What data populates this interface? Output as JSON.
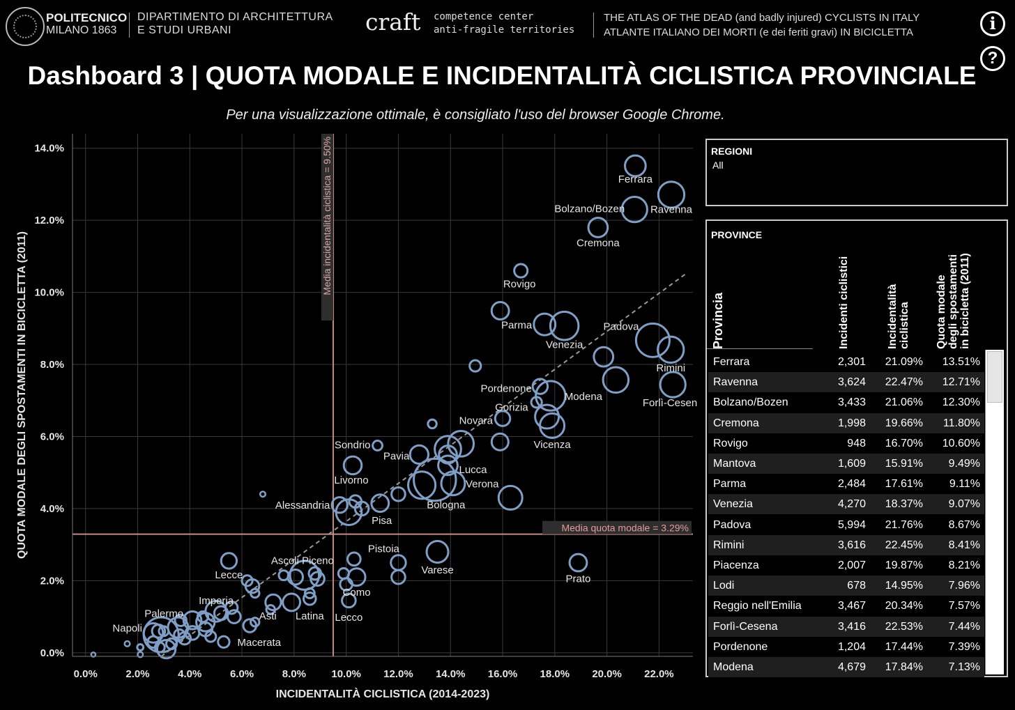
{
  "header": {
    "poli_line1": "POLITECNICO",
    "poli_line2": "MILANO 1863",
    "dept_line1": "DIPARTIMENTO DI ARCHITETTURA",
    "dept_line2": "E STUDI URBANI",
    "craft_logo": "craft",
    "craft_line1": "competence center",
    "craft_line2": "anti-fragile territories",
    "atlas_line1": "THE ATLAS OF THE DEAD (and badly injured) CYCLISTS IN ITALY",
    "atlas_line2": "ATLANTE ITALIANO DEI MORTI (e dei feriti gravi) IN BICICLETTA",
    "info_icon": "info-icon",
    "help_icon": "help-icon",
    "info_glyph": "i",
    "help_glyph": "?"
  },
  "title": "Dashboard 3 | QUOTA MODALE E INCIDENTALITÀ CICLISTICA PROVINCIALE",
  "subtitle": "Per una visualizzazione ottimale, è consigliato l'uso del browser Google Chrome.",
  "chart_data": {
    "type": "scatter",
    "xlabel": "INCIDENTALITÀ CICLISTICA (2014-2023)",
    "ylabel": "QUOTA MODALE DEGLI SPOSTAMENTI IN BICICLETTA (2011)",
    "xlim": [
      -0.5,
      23.3
    ],
    "ylim": [
      -0.1,
      14.4
    ],
    "x_ticks": [
      "0.0%",
      "2.0%",
      "4.0%",
      "6.0%",
      "8.0%",
      "10.0%",
      "12.0%",
      "14.0%",
      "16.0%",
      "18.0%",
      "20.0%",
      "22.0%"
    ],
    "x_tick_values": [
      0,
      2,
      4,
      6,
      8,
      10,
      12,
      14,
      16,
      18,
      20,
      22
    ],
    "y_ticks": [
      "0.0%",
      "2.0%",
      "4.0%",
      "6.0%",
      "8.0%",
      "10.0%",
      "12.0%",
      "14.0%"
    ],
    "y_tick_values": [
      0,
      2,
      4,
      6,
      8,
      10,
      12,
      14
    ],
    "grid": true,
    "ref_lines": [
      {
        "axis": "x",
        "value": 9.5,
        "label": "Media incidentalità ciclistica = 9.50%"
      },
      {
        "axis": "y",
        "value": 3.29,
        "label": "Media quota modale = 3.29%"
      }
    ],
    "trendline": {
      "x": [
        2.9,
        23.0
      ],
      "y": [
        -0.1,
        10.5
      ]
    },
    "size_encoding": "Incidenti ciclistici",
    "points": [
      {
        "x": 21.09,
        "y": 13.51,
        "n": 2301,
        "label": "Ferrara"
      },
      {
        "x": 22.47,
        "y": 12.71,
        "n": 3624,
        "label": "Ravenna"
      },
      {
        "x": 21.06,
        "y": 12.3,
        "n": 3433,
        "label": "Bolzano/Bozen"
      },
      {
        "x": 19.66,
        "y": 11.8,
        "n": 1998,
        "label": "Cremona"
      },
      {
        "x": 16.7,
        "y": 10.6,
        "n": 948,
        "label": "Rovigo"
      },
      {
        "x": 15.91,
        "y": 9.49,
        "n": 1609,
        "label": ""
      },
      {
        "x": 17.61,
        "y": 9.11,
        "n": 2484,
        "label": "Parma"
      },
      {
        "x": 18.37,
        "y": 9.07,
        "n": 4270,
        "label": "Venezia"
      },
      {
        "x": 21.76,
        "y": 8.67,
        "n": 5994,
        "label": "Padova"
      },
      {
        "x": 22.45,
        "y": 8.41,
        "n": 3616,
        "label": "Rimini"
      },
      {
        "x": 19.87,
        "y": 8.21,
        "n": 2007,
        "label": ""
      },
      {
        "x": 14.95,
        "y": 7.96,
        "n": 678,
        "label": ""
      },
      {
        "x": 20.34,
        "y": 7.57,
        "n": 3467,
        "label": ""
      },
      {
        "x": 22.53,
        "y": 7.44,
        "n": 3416,
        "label": "Forlì-Cesena"
      },
      {
        "x": 17.44,
        "y": 7.39,
        "n": 1204,
        "label": "Pordenone"
      },
      {
        "x": 17.84,
        "y": 7.13,
        "n": 4679,
        "label": "Modena"
      },
      {
        "x": 17.3,
        "y": 6.95,
        "n": 600,
        "label": "Gorizia"
      },
      {
        "x": 16.0,
        "y": 6.5,
        "n": 1200,
        "label": "Novara"
      },
      {
        "x": 17.7,
        "y": 6.55,
        "n": 3000,
        "label": ""
      },
      {
        "x": 17.9,
        "y": 6.3,
        "n": 3200,
        "label": "Vicenza"
      },
      {
        "x": 13.3,
        "y": 6.35,
        "n": 400,
        "label": ""
      },
      {
        "x": 15.9,
        "y": 5.85,
        "n": 1500,
        "label": ""
      },
      {
        "x": 14.4,
        "y": 5.8,
        "n": 3500,
        "label": ""
      },
      {
        "x": 13.9,
        "y": 5.65,
        "n": 3700,
        "label": ""
      },
      {
        "x": 13.9,
        "y": 5.5,
        "n": 1700,
        "label": ""
      },
      {
        "x": 11.2,
        "y": 5.75,
        "n": 500,
        "label": "Sondrio"
      },
      {
        "x": 12.8,
        "y": 5.5,
        "n": 1800,
        "label": "Pavia"
      },
      {
        "x": 10.25,
        "y": 5.2,
        "n": 1700,
        "label": "Livorno"
      },
      {
        "x": 13.9,
        "y": 5.2,
        "n": 2000,
        "label": "Lucca"
      },
      {
        "x": 13.4,
        "y": 4.8,
        "n": 9500,
        "label": "Bologna"
      },
      {
        "x": 12.9,
        "y": 4.65,
        "n": 4000,
        "label": ""
      },
      {
        "x": 14.1,
        "y": 4.7,
        "n": 3000,
        "label": "Verona"
      },
      {
        "x": 16.3,
        "y": 4.3,
        "n": 3000,
        "label": ""
      },
      {
        "x": 12.0,
        "y": 4.4,
        "n": 1000,
        "label": ""
      },
      {
        "x": 11.3,
        "y": 4.15,
        "n": 1600,
        "label": ""
      },
      {
        "x": 10.35,
        "y": 4.2,
        "n": 800,
        "label": ""
      },
      {
        "x": 9.75,
        "y": 4.1,
        "n": 1300,
        "label": "Alessandria"
      },
      {
        "x": 10.1,
        "y": 3.9,
        "n": 3500,
        "label": ""
      },
      {
        "x": 10.6,
        "y": 4.0,
        "n": 1000,
        "label": "Pisa"
      },
      {
        "x": 6.8,
        "y": 4.4,
        "n": 150,
        "label": ""
      },
      {
        "x": 13.5,
        "y": 2.8,
        "n": 2500,
        "label": "Varese"
      },
      {
        "x": 18.9,
        "y": 2.5,
        "n": 1600,
        "label": "Prato"
      },
      {
        "x": 10.3,
        "y": 2.6,
        "n": 900,
        "label": "Pistoia"
      },
      {
        "x": 12.0,
        "y": 2.5,
        "n": 1200,
        "label": ""
      },
      {
        "x": 12.0,
        "y": 2.1,
        "n": 1000,
        "label": ""
      },
      {
        "x": 10.4,
        "y": 2.1,
        "n": 1600,
        "label": "Como"
      },
      {
        "x": 9.9,
        "y": 2.2,
        "n": 600,
        "label": ""
      },
      {
        "x": 10.0,
        "y": 1.9,
        "n": 800,
        "label": ""
      },
      {
        "x": 10.1,
        "y": 1.45,
        "n": 1000,
        "label": "Lecco"
      },
      {
        "x": 8.4,
        "y": 2.15,
        "n": 4500,
        "label": "Ascoli Piceno"
      },
      {
        "x": 8.05,
        "y": 2.1,
        "n": 1200,
        "label": ""
      },
      {
        "x": 8.8,
        "y": 2.2,
        "n": 800,
        "label": ""
      },
      {
        "x": 8.9,
        "y": 2.05,
        "n": 1000,
        "label": ""
      },
      {
        "x": 7.6,
        "y": 2.15,
        "n": 500,
        "label": ""
      },
      {
        "x": 5.5,
        "y": 2.55,
        "n": 1300,
        "label": "Lecce"
      },
      {
        "x": 6.2,
        "y": 2.0,
        "n": 600,
        "label": ""
      },
      {
        "x": 6.4,
        "y": 1.85,
        "n": 1000,
        "label": ""
      },
      {
        "x": 6.5,
        "y": 1.65,
        "n": 400,
        "label": ""
      },
      {
        "x": 8.6,
        "y": 1.65,
        "n": 500,
        "label": ""
      },
      {
        "x": 8.6,
        "y": 1.5,
        "n": 800,
        "label": "Latina"
      },
      {
        "x": 7.9,
        "y": 1.4,
        "n": 1600,
        "label": ""
      },
      {
        "x": 7.2,
        "y": 1.4,
        "n": 1300,
        "label": ""
      },
      {
        "x": 7.1,
        "y": 1.2,
        "n": 400,
        "label": "Asti"
      },
      {
        "x": 5.6,
        "y": 1.25,
        "n": 800,
        "label": "Imperia"
      },
      {
        "x": 5.7,
        "y": 1.0,
        "n": 900,
        "label": ""
      },
      {
        "x": 5.2,
        "y": 1.1,
        "n": 1000,
        "label": ""
      },
      {
        "x": 5.0,
        "y": 1.15,
        "n": 2300,
        "label": ""
      },
      {
        "x": 6.3,
        "y": 0.75,
        "n": 900,
        "label": ""
      },
      {
        "x": 6.5,
        "y": 0.85,
        "n": 400,
        "label": "Macerata"
      },
      {
        "x": 4.5,
        "y": 1.0,
        "n": 600,
        "label": ""
      },
      {
        "x": 4.1,
        "y": 0.9,
        "n": 1700,
        "label": ""
      },
      {
        "x": 4.6,
        "y": 0.85,
        "n": 1800,
        "label": ""
      },
      {
        "x": 4.6,
        "y": 0.65,
        "n": 1000,
        "label": ""
      },
      {
        "x": 5.3,
        "y": 0.3,
        "n": 700,
        "label": ""
      },
      {
        "x": 3.65,
        "y": 0.9,
        "n": 700,
        "label": "Palermo"
      },
      {
        "x": 3.55,
        "y": 0.7,
        "n": 2200,
        "label": ""
      },
      {
        "x": 3.6,
        "y": 0.5,
        "n": 600,
        "label": ""
      },
      {
        "x": 3.8,
        "y": 0.4,
        "n": 800,
        "label": ""
      },
      {
        "x": 4.1,
        "y": 0.55,
        "n": 1000,
        "label": ""
      },
      {
        "x": 4.8,
        "y": 0.45,
        "n": 600,
        "label": ""
      },
      {
        "x": 2.9,
        "y": 0.5,
        "n": 6500,
        "label": ""
      },
      {
        "x": 2.6,
        "y": 0.55,
        "n": 2000,
        "label": "Napoli"
      },
      {
        "x": 2.6,
        "y": 0.3,
        "n": 700,
        "label": ""
      },
      {
        "x": 2.85,
        "y": 0.15,
        "n": 500,
        "label": ""
      },
      {
        "x": 3.1,
        "y": 0.1,
        "n": 1800,
        "label": ""
      },
      {
        "x": 3.3,
        "y": 0.25,
        "n": 600,
        "label": ""
      },
      {
        "x": 3.0,
        "y": 0.6,
        "n": 500,
        "label": ""
      },
      {
        "x": 2.1,
        "y": 0.15,
        "n": 200,
        "label": ""
      },
      {
        "x": 1.6,
        "y": 0.25,
        "n": 150,
        "label": ""
      },
      {
        "x": 2.1,
        "y": -0.05,
        "n": 150,
        "label": ""
      },
      {
        "x": 0.3,
        "y": -0.05,
        "n": 100,
        "label": ""
      },
      {
        "x": 2.8,
        "y": 0.6,
        "n": 900,
        "label": ""
      }
    ]
  },
  "colors": {
    "point": "#7f9fc6",
    "ref_line": "#c98a8a",
    "trend": "#9a9a9a",
    "grid": "#3a3a3a"
  },
  "filters": {
    "regioni": {
      "title": "REGIONI",
      "value": "All"
    },
    "province": {
      "title": "PROVINCE",
      "columns": [
        "Provincia",
        "Incidenti ciclistici",
        "Incidentalità ciclistica",
        "Quota modale degli spostamenti in bicicletta (2011)"
      ],
      "col_lines": {
        "c1": [
          "Incidenti ciclistici"
        ],
        "c2": [
          "Incidentalità",
          "ciclistica"
        ],
        "c3": [
          "Quota modale",
          "degli spostamenti",
          "in bicicletta (2011)"
        ]
      },
      "rows": [
        [
          "Ferrara",
          "2,301",
          "21.09%",
          "13.51%"
        ],
        [
          "Ravenna",
          "3,624",
          "22.47%",
          "12.71%"
        ],
        [
          "Bolzano/Bozen",
          "3,433",
          "21.06%",
          "12.30%"
        ],
        [
          "Cremona",
          "1,998",
          "19.66%",
          "11.80%"
        ],
        [
          "Rovigo",
          "948",
          "16.70%",
          "10.60%"
        ],
        [
          "Mantova",
          "1,609",
          "15.91%",
          "9.49%"
        ],
        [
          "Parma",
          "2,484",
          "17.61%",
          "9.11%"
        ],
        [
          "Venezia",
          "4,270",
          "18.37%",
          "9.07%"
        ],
        [
          "Padova",
          "5,994",
          "21.76%",
          "8.67%"
        ],
        [
          "Rimini",
          "3,616",
          "22.45%",
          "8.41%"
        ],
        [
          "Piacenza",
          "2,007",
          "19.87%",
          "8.21%"
        ],
        [
          "Lodi",
          "678",
          "14.95%",
          "7.96%"
        ],
        [
          "Reggio nell'Emilia",
          "3,467",
          "20.34%",
          "7.57%"
        ],
        [
          "Forlì-Cesena",
          "3,416",
          "22.53%",
          "7.44%"
        ],
        [
          "Pordenone",
          "1,204",
          "17.44%",
          "7.39%"
        ],
        [
          "Modena",
          "4,679",
          "17.84%",
          "7.13%"
        ]
      ]
    }
  }
}
